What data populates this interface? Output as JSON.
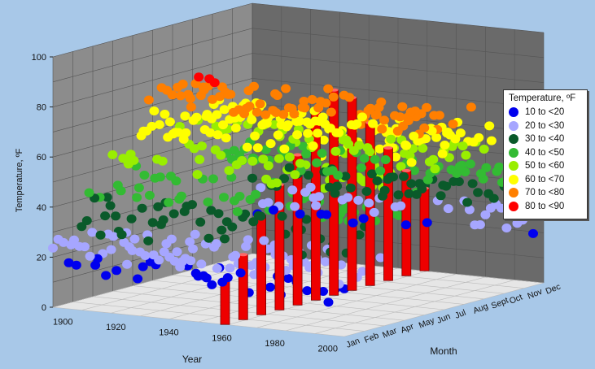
{
  "chart_data": {
    "type": "scatter",
    "subtype": "3d-scatter-with-bars",
    "ylabel": "Temperature, ºF",
    "xlabel": "Year",
    "zlabel": "Month",
    "zlim": [
      0,
      100
    ],
    "z_ticks": [
      "0",
      "20",
      "40",
      "60",
      "80",
      "100"
    ],
    "x_ticks": [
      "1900",
      "1920",
      "1940",
      "1960",
      "1980",
      "2000"
    ],
    "month_ticks": [
      "Jan",
      "Feb",
      "Mar",
      "Apr",
      "May",
      "Jun",
      "Jul",
      "Aug",
      "Sept",
      "Oct",
      "Nov",
      "Dec"
    ],
    "grid": true,
    "legend": {
      "title": "Temperature, ºF",
      "placement": "right",
      "entries": [
        {
          "label": "10 to <20",
          "color": "#0000ee"
        },
        {
          "label": "20 to <30",
          "color": "#a6a6ff"
        },
        {
          "label": "30 to <40",
          "color": "#0a5a2a"
        },
        {
          "label": "40 to <50",
          "color": "#33bb33"
        },
        {
          "label": "50 to <60",
          "color": "#99ee00"
        },
        {
          "label": "60 to <70",
          "color": "#ffff00"
        },
        {
          "label": "70 to <80",
          "color": "#ff7f00"
        },
        {
          "label": "80 to <90",
          "color": "#ff0000"
        }
      ]
    },
    "monthly_mean_temperature": {
      "months": [
        "Jan",
        "Feb",
        "Mar",
        "Apr",
        "May",
        "Jun",
        "Jul",
        "Aug",
        "Sept",
        "Oct",
        "Nov",
        "Dec"
      ],
      "values": [
        22,
        25,
        35,
        47,
        58,
        67,
        72,
        70,
        62,
        50,
        38,
        27
      ]
    },
    "bars_year": 1960,
    "bars_month_values": [
      {
        "month": "Jan",
        "value": 18
      },
      {
        "month": "Feb",
        "value": 26
      },
      {
        "month": "Mar",
        "value": 40
      },
      {
        "month": "Apr",
        "value": 50
      },
      {
        "month": "May",
        "value": 60
      },
      {
        "month": "Jun",
        "value": 75
      },
      {
        "month": "Jul",
        "value": 82
      },
      {
        "month": "Aug",
        "value": 77
      },
      {
        "month": "Sept",
        "value": 65
      },
      {
        "month": "Oct",
        "value": 53
      },
      {
        "month": "Nov",
        "value": 42
      },
      {
        "month": "Dec",
        "value": 33
      }
    ],
    "year_range": [
      1895,
      2005
    ]
  }
}
